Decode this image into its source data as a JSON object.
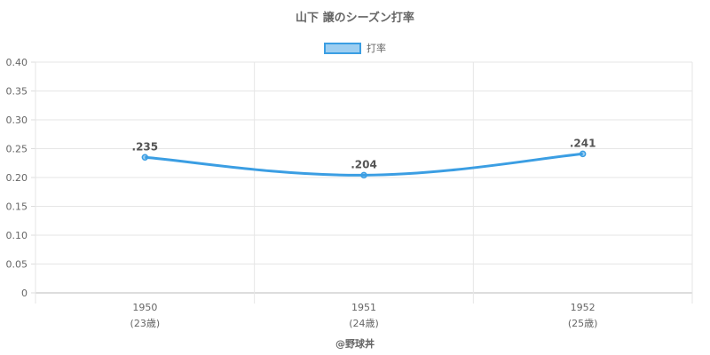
{
  "chart_data": {
    "type": "line",
    "title": "山下 譲のシーズン打率",
    "categories": [
      "1950",
      "1951",
      "1952"
    ],
    "category_sublabels": [
      "(23歳)",
      "(24歳)",
      "(25歳)"
    ],
    "series": [
      {
        "name": "打率",
        "values": [
          0.235,
          0.204,
          0.241
        ],
        "labels": [
          ".235",
          ".204",
          ".241"
        ],
        "color": "#3b9ee3"
      }
    ],
    "ylim": [
      0,
      0.4
    ],
    "yticks": [
      "0",
      "0.05",
      "0.10",
      "0.15",
      "0.20",
      "0.25",
      "0.30",
      "0.35",
      "0.40"
    ],
    "grid": true,
    "legend_position": "top"
  },
  "footer": "@野球丼"
}
